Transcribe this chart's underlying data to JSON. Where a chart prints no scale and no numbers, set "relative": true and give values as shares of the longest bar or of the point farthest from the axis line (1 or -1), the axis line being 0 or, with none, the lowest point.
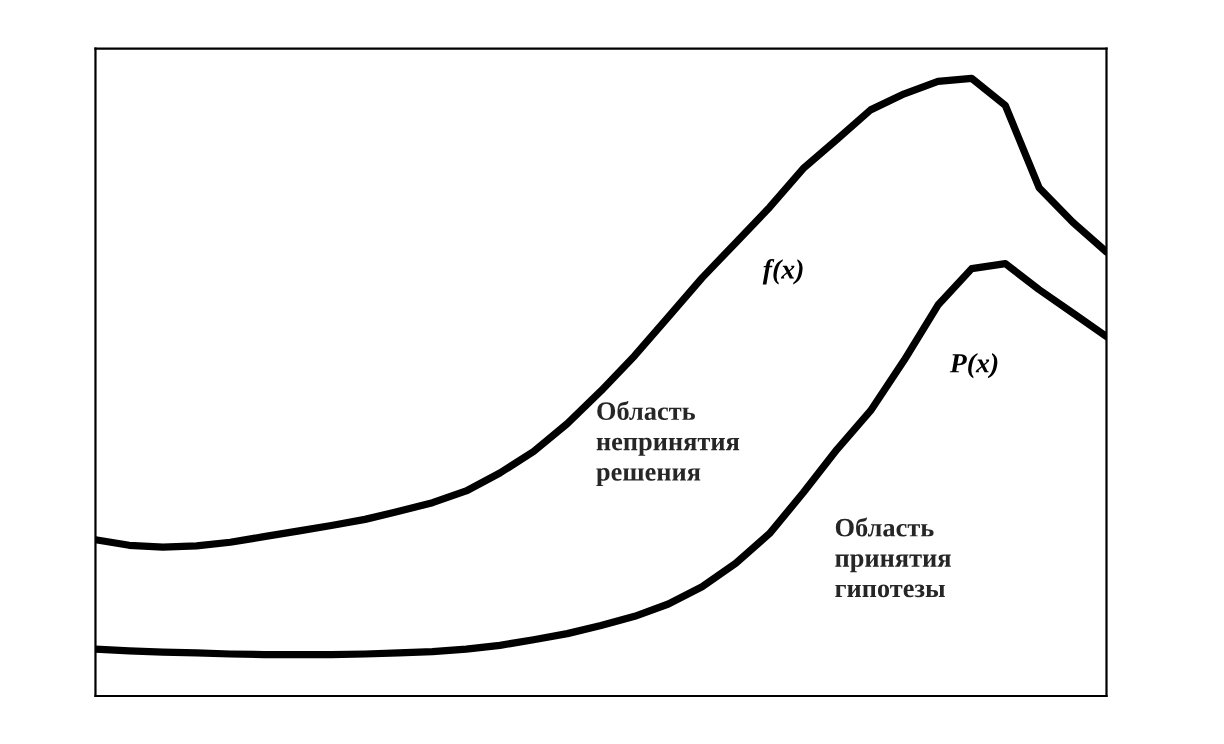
{
  "chart_data": {
    "type": "line",
    "relative": true,
    "categories": [
      null,
      null,
      null,
      null,
      null,
      null,
      null,
      null,
      null,
      null,
      null,
      null,
      null,
      null,
      null,
      null,
      null,
      null,
      null,
      null,
      null,
      null,
      null,
      null,
      null,
      null,
      null,
      null,
      null,
      null,
      null
    ],
    "series": [
      {
        "name": "f(x)",
        "color": "#000000",
        "values": [
          0.253,
          0.244,
          0.241,
          0.243,
          0.249,
          0.258,
          0.267,
          0.276,
          0.286,
          0.299,
          0.313,
          0.332,
          0.361,
          0.396,
          0.441,
          0.494,
          0.551,
          0.614,
          0.677,
          0.734,
          0.791,
          0.854,
          0.901,
          0.949,
          0.975,
          0.995,
          1.0,
          0.956,
          0.823,
          0.767,
          0.719
        ]
      },
      {
        "name": "P(x)",
        "color": "#000000",
        "values": [
          0.076,
          0.073,
          0.071,
          0.07,
          0.068,
          0.067,
          0.067,
          0.067,
          0.068,
          0.07,
          0.072,
          0.076,
          0.082,
          0.091,
          0.101,
          0.114,
          0.129,
          0.149,
          0.177,
          0.215,
          0.263,
          0.329,
          0.399,
          0.462,
          0.544,
          0.633,
          0.692,
          0.7,
          0.658,
          0.62,
          0.582
        ]
      }
    ],
    "annotations": [
      "Область\nнепринятия\nрешения",
      "Область\nпринятия\nгипотезы"
    ],
    "line_style": "solid"
  }
}
